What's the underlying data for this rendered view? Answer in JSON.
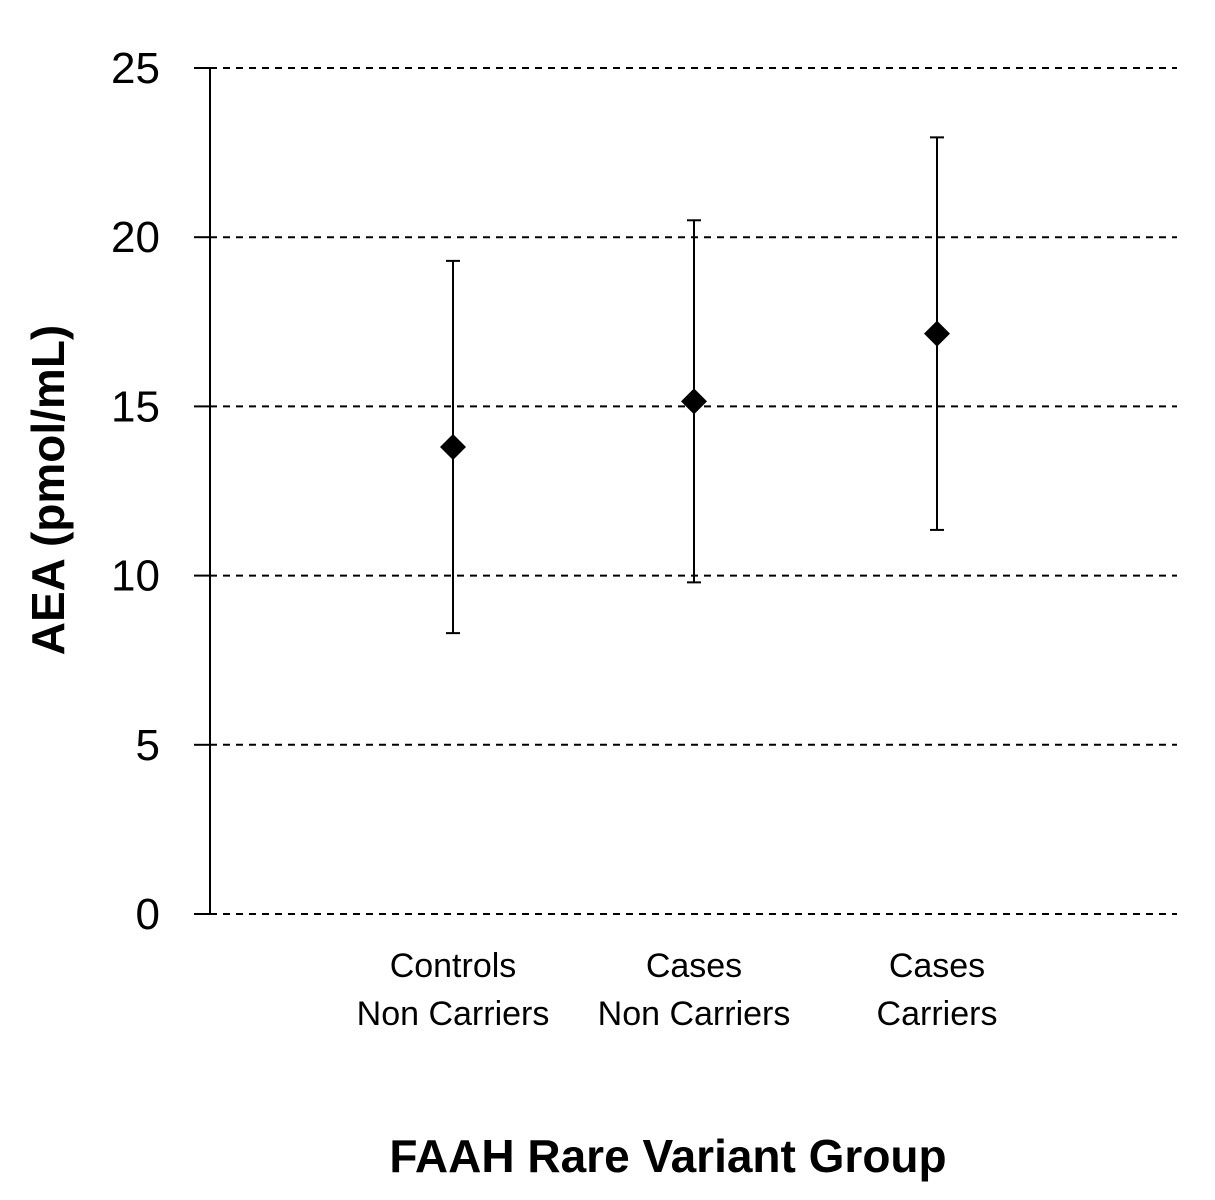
{
  "chart_data": {
    "type": "scatter",
    "xlabel": "FAAH Rare Variant Group",
    "ylabel": "AEA (pmol/mL)",
    "ylim": [
      0,
      25
    ],
    "yticks": [
      "0",
      "5",
      "10",
      "15",
      "20",
      "25"
    ],
    "grid": "horizontal dashed",
    "categories": [
      {
        "line1": "Controls",
        "line2": "Non Carriers"
      },
      {
        "line1": "Cases",
        "line2": "Non Carriers"
      },
      {
        "line1": "Cases",
        "line2": "Carriers"
      }
    ],
    "points": [
      {
        "value": 13.8,
        "err_low": 8.3,
        "err_high": 19.3
      },
      {
        "value": 15.15,
        "err_low": 9.8,
        "err_high": 20.5
      },
      {
        "value": 17.15,
        "err_low": 11.35,
        "err_high": 22.95
      }
    ],
    "marker": "diamond",
    "color": "#000000"
  }
}
